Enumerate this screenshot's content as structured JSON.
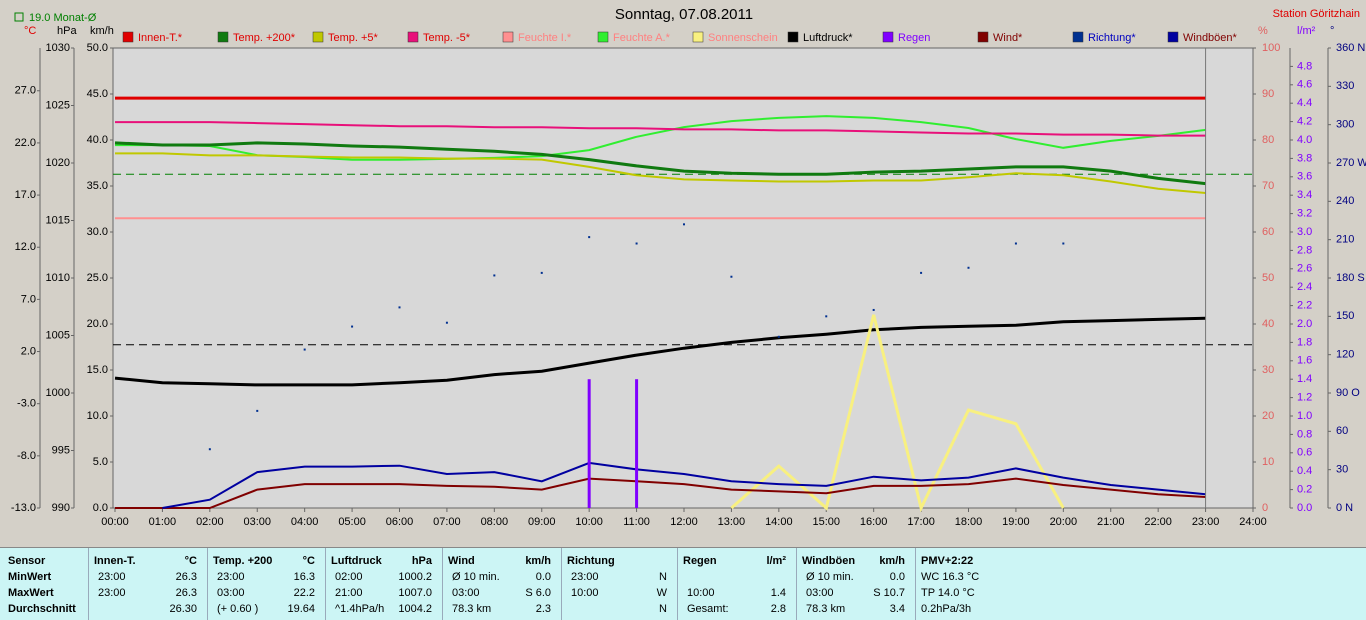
{
  "header": {
    "title": "Sonntag, 07.08.2011",
    "station": "Station Göritzhain",
    "monthly_label": "19.0 Monat-Ø"
  },
  "chart_data": {
    "type": "line",
    "x": [
      0,
      1,
      2,
      3,
      4,
      5,
      6,
      7,
      8,
      9,
      10,
      11,
      12,
      13,
      14,
      15,
      16,
      17,
      18,
      19,
      20,
      21,
      22,
      23
    ],
    "xlim": [
      0,
      24
    ],
    "xticks": [
      {
        "value": 0,
        "label": "00:00"
      },
      {
        "value": 1,
        "label": "01:00"
      },
      {
        "value": 2,
        "label": "02:00"
      },
      {
        "value": 3,
        "label": "03:00"
      },
      {
        "value": 4,
        "label": "04:00"
      },
      {
        "value": 5,
        "label": "05:00"
      },
      {
        "value": 6,
        "label": "06:00"
      },
      {
        "value": 7,
        "label": "07:00"
      },
      {
        "value": 8,
        "label": "08:00"
      },
      {
        "value": 9,
        "label": "09:00"
      },
      {
        "value": 10,
        "label": "10:00"
      },
      {
        "value": 11,
        "label": "11:00"
      },
      {
        "value": 12,
        "label": "12:00"
      },
      {
        "value": 13,
        "label": "13:00"
      },
      {
        "value": 14,
        "label": "14:00"
      },
      {
        "value": 15,
        "label": "15:00"
      },
      {
        "value": 16,
        "label": "16:00"
      },
      {
        "value": 17,
        "label": "17:00"
      },
      {
        "value": 18,
        "label": "18:00"
      },
      {
        "value": 19,
        "label": "19:00"
      },
      {
        "value": 20,
        "label": "20:00"
      },
      {
        "value": 21,
        "label": "21:00"
      },
      {
        "value": 22,
        "label": "22:00"
      },
      {
        "value": 23,
        "label": "23:00"
      },
      {
        "value": 24,
        "label": "24:00"
      }
    ],
    "axes": [
      {
        "title": "°C",
        "color": "#e00000",
        "tick_color": "#000000",
        "ylim": [
          -13,
          31.1
        ],
        "yticks": [
          {
            "value": -13,
            "label": "-13.0"
          },
          {
            "value": -8,
            "label": "-8.0"
          },
          {
            "value": -3,
            "label": "-3.0"
          },
          {
            "value": 2,
            "label": "2.0"
          },
          {
            "value": 7,
            "label": "7.0"
          },
          {
            "value": 12,
            "label": "12.0"
          },
          {
            "value": 17,
            "label": "17.0"
          },
          {
            "value": 22,
            "label": "22.0"
          },
          {
            "value": 27,
            "label": "27.0"
          }
        ]
      },
      {
        "title": "hPa",
        "color": "#000000",
        "tick_color": "#000000",
        "ylim": [
          990,
          1030
        ],
        "yticks": [
          990,
          995,
          1000,
          1005,
          1010,
          1015,
          1020,
          1025,
          1030
        ]
      },
      {
        "title": "km/h",
        "color": "#000000",
        "tick_color": "#000000",
        "ylim": [
          0,
          50
        ],
        "yticks": [
          {
            "value": 0,
            "label": "0.0"
          },
          {
            "value": 5,
            "label": "5.0"
          },
          {
            "value": 10,
            "label": "10.0"
          },
          {
            "value": 15,
            "label": "15.0"
          },
          {
            "value": 20,
            "label": "20.0"
          },
          {
            "value": 25,
            "label": "25.0"
          },
          {
            "value": 30,
            "label": "30.0"
          },
          {
            "value": 35,
            "label": "35.0"
          },
          {
            "value": 40,
            "label": "40.0"
          },
          {
            "value": 45,
            "label": "45.0"
          },
          {
            "value": 50,
            "label": "50.0"
          }
        ]
      },
      {
        "title": "%",
        "color": "#e06060",
        "tick_color": "#e06060",
        "ylim": [
          0,
          100
        ],
        "yticks": [
          0,
          10,
          20,
          30,
          40,
          50,
          60,
          70,
          80,
          90,
          100
        ]
      },
      {
        "title": "l/m²",
        "color": "#8000ff",
        "tick_color": "#8000ff",
        "ylim": [
          0,
          5
        ],
        "yticks": [
          {
            "value": 0,
            "label": "0.0"
          },
          {
            "value": 0.2,
            "label": "0.2"
          },
          {
            "value": 0.4,
            "label": "0.4"
          },
          {
            "value": 0.6,
            "label": "0.6"
          },
          {
            "value": 0.8,
            "label": "0.8"
          },
          {
            "value": 1,
            "label": "1.0"
          },
          {
            "value": 1.2,
            "label": "1.2"
          },
          {
            "value": 1.4,
            "label": "1.4"
          },
          {
            "value": 1.6,
            "label": "1.6"
          },
          {
            "value": 1.8,
            "label": "1.8"
          },
          {
            "value": 2,
            "label": "2.0"
          },
          {
            "value": 2.2,
            "label": "2.2"
          },
          {
            "value": 2.4,
            "label": "2.4"
          },
          {
            "value": 2.6,
            "label": "2.6"
          },
          {
            "value": 2.8,
            "label": "2.8"
          },
          {
            "value": 3,
            "label": "3.0"
          },
          {
            "value": 3.2,
            "label": "3.2"
          },
          {
            "value": 3.4,
            "label": "3.4"
          },
          {
            "value": 3.6,
            "label": "3.6"
          },
          {
            "value": 3.8,
            "label": "3.8"
          },
          {
            "value": 4,
            "label": "4.0"
          },
          {
            "value": 4.2,
            "label": "4.2"
          },
          {
            "value": 4.4,
            "label": "4.4"
          },
          {
            "value": 4.6,
            "label": "4.6"
          },
          {
            "value": 4.8,
            "label": "4.8"
          }
        ]
      },
      {
        "title": "°",
        "color": "#000080",
        "tick_color": "#000080",
        "ylim": [
          0,
          360
        ],
        "yticks": [
          {
            "value": 0,
            "label": "0 N"
          },
          30,
          60,
          {
            "value": 90,
            "label": "90 O"
          },
          120,
          150,
          {
            "value": 180,
            "label": "180 S"
          },
          210,
          240,
          {
            "value": 270,
            "label": "270 W"
          },
          300,
          330,
          {
            "value": 360,
            "label": "360 N"
          }
        ]
      }
    ],
    "reference_lines": [
      {
        "axis": 0,
        "value": 19.0,
        "color": "#008000"
      },
      {
        "axis": 1,
        "value": 1004.2,
        "color": "#000000"
      }
    ],
    "series": [
      {
        "name": "Innen-T.*",
        "color": "#e00000",
        "label_color": "#e00000",
        "axis": 0,
        "style": "line",
        "width": 3,
        "values": [
          26.3,
          26.3,
          26.3,
          26.3,
          26.3,
          26.3,
          26.3,
          26.3,
          26.3,
          26.3,
          26.3,
          26.3,
          26.3,
          26.3,
          26.3,
          26.3,
          26.3,
          26.3,
          26.3,
          26.3,
          26.3,
          26.3,
          26.3,
          26.3
        ]
      },
      {
        "name": "Temp. +200*",
        "color": "#107a10",
        "label_color": "#e00000",
        "axis": 0,
        "style": "line",
        "width": 3,
        "values": [
          22.0,
          21.8,
          21.8,
          22.0,
          21.9,
          21.7,
          21.6,
          21.4,
          21.2,
          20.9,
          20.4,
          19.8,
          19.3,
          19.1,
          19.0,
          19.0,
          19.2,
          19.3,
          19.5,
          19.7,
          19.7,
          19.3,
          18.6,
          18.1
        ]
      },
      {
        "name": "Temp. +5*",
        "color": "#c0c800",
        "label_color": "#e00000",
        "axis": 0,
        "style": "line",
        "width": 2,
        "values": [
          21.0,
          21.0,
          20.8,
          20.8,
          20.7,
          20.6,
          20.6,
          20.5,
          20.5,
          20.4,
          19.7,
          18.9,
          18.5,
          18.4,
          18.3,
          18.3,
          18.4,
          18.4,
          18.7,
          19.1,
          18.9,
          18.3,
          17.6,
          17.2
        ]
      },
      {
        "name": "Temp. -5*",
        "color": "#e8107a",
        "label_color": "#e00000",
        "axis": 0,
        "style": "line",
        "width": 2,
        "values": [
          24.0,
          24.0,
          24.0,
          23.9,
          23.8,
          23.7,
          23.6,
          23.6,
          23.5,
          23.5,
          23.4,
          23.4,
          23.3,
          23.3,
          23.2,
          23.2,
          23.1,
          23.0,
          22.9,
          22.9,
          22.8,
          22.8,
          22.7,
          22.7
        ]
      },
      {
        "name": "Feuchte I.*",
        "color": "#ff9090",
        "label_color": "#ff8080",
        "axis": 3,
        "style": "line",
        "width": 2,
        "values": [
          63,
          63,
          63,
          63,
          63,
          63,
          63,
          63,
          63,
          63,
          63,
          63,
          63,
          63,
          63,
          63,
          63,
          63,
          63,
          63,
          63,
          63,
          63,
          63
        ]
      },
      {
        "name": "Feuchte A.*",
        "color": "#30ee30",
        "label_color": "#ff8080",
        "axis": 3,
        "style": "line",
        "width": 2,
        "values": [
          78.9,
          78.9,
          78.7,
          76.7,
          76.3,
          75.7,
          75.7,
          75.9,
          76.1,
          76.5,
          77.8,
          80.7,
          82.8,
          84.1,
          84.8,
          85.2,
          84.8,
          83.9,
          82.6,
          80.2,
          78.3,
          79.8,
          80.9,
          82.2
        ]
      },
      {
        "name": "Sonnenschein",
        "color": "#f8f080",
        "label_color": "#ff8080",
        "axis": 3,
        "style": "line",
        "width": 3,
        "values": [
          null,
          null,
          null,
          null,
          null,
          null,
          null,
          null,
          null,
          null,
          null,
          null,
          null,
          0,
          9.1,
          0,
          42,
          0,
          21.3,
          18.3,
          0,
          null,
          null,
          null
        ]
      },
      {
        "name": "Luftdruck*",
        "color": "#000000",
        "label_color": "#000000",
        "axis": 1,
        "style": "line",
        "width": 3,
        "values": [
          1001.3,
          1000.9,
          1000.8,
          1000.7,
          1000.7,
          1000.7,
          1000.9,
          1001.1,
          1001.6,
          1001.9,
          1002.6,
          1003.3,
          1003.9,
          1004.4,
          1004.8,
          1005.1,
          1005.5,
          1005.7,
          1005.8,
          1005.9,
          1006.2,
          1006.3,
          1006.4,
          1006.5
        ]
      },
      {
        "name": "Regen",
        "color": "#8000ff",
        "label_color": "#8000ff",
        "axis": 4,
        "style": "bar",
        "width": 3,
        "values": [
          0,
          0,
          0,
          0,
          0,
          0,
          0,
          0,
          0,
          0,
          1.4,
          1.4,
          0,
          0,
          0,
          0,
          0,
          0,
          0,
          0,
          0,
          0,
          0,
          0
        ]
      },
      {
        "name": "Wind*",
        "color": "#800000",
        "label_color": "#800000",
        "axis": 2,
        "style": "line",
        "width": 2,
        "values": [
          0,
          0,
          0,
          2.0,
          2.6,
          2.6,
          2.6,
          2.4,
          2.3,
          2.0,
          3.2,
          2.9,
          2.6,
          2.0,
          1.8,
          1.6,
          2.4,
          2.4,
          2.6,
          3.2,
          2.5,
          2.0,
          1.5,
          1.2
        ]
      },
      {
        "name": "Richtung*",
        "color": "#003090",
        "label_color": "#0000c0",
        "axis": 5,
        "style": "dots",
        "width": 2,
        "values": [
          null,
          null,
          46,
          76,
          124,
          142,
          157,
          145,
          182,
          184,
          212,
          207,
          222,
          181,
          134,
          150,
          155,
          184,
          188,
          207,
          207,
          null,
          null,
          null
        ]
      },
      {
        "name": "Windböen*",
        "color": "#0000a0",
        "label_color": "#800000",
        "axis": 2,
        "style": "line",
        "width": 2,
        "values": [
          null,
          0,
          0.9,
          3.9,
          4.5,
          4.5,
          4.6,
          3.7,
          3.9,
          2.9,
          4.9,
          4.2,
          3.7,
          2.9,
          2.6,
          2.4,
          3.4,
          3.0,
          3.3,
          4.3,
          3.3,
          2.5,
          2.0,
          1.5
        ]
      }
    ]
  },
  "table": {
    "sensor": {
      "title": "Sensor",
      "rows": [
        "MinWert",
        "MaxWert",
        "Durchschnitt"
      ]
    },
    "groups": [
      {
        "title": "Innen-T.",
        "unit": "°C",
        "rows": [
          [
            "23:00",
            "26.3"
          ],
          [
            "23:00",
            "26.3"
          ],
          [
            null,
            "26.30"
          ]
        ]
      },
      {
        "title": "Temp. +200",
        "unit": "°C",
        "rows": [
          [
            "23:00",
            "16.3"
          ],
          [
            "03:00",
            "22.2"
          ],
          [
            "(+ 0.60 )",
            "19.64"
          ]
        ]
      },
      {
        "title": "Luftdruck",
        "unit": "hPa",
        "rows": [
          [
            "02:00",
            "1000.2"
          ],
          [
            "21:00",
            "1007.0"
          ],
          [
            "^1.4hPa/h",
            "1004.2"
          ]
        ]
      },
      {
        "title": "Wind",
        "unit": "km/h",
        "rows": [
          [
            "Ø 10 min.",
            "0.0"
          ],
          [
            "03:00",
            "S 6.0"
          ],
          [
            "78.3 km",
            "2.3"
          ]
        ]
      },
      {
        "title": "Richtung",
        "rows": [
          [
            "23:00",
            "N"
          ],
          [
            "10:00",
            "W"
          ],
          [
            null,
            "N"
          ]
        ]
      },
      {
        "title": "Regen",
        "unit": "l/m²",
        "rows": [
          [
            null,
            null
          ],
          [
            "10:00",
            "1.4"
          ],
          [
            "Gesamt:",
            "2.8"
          ]
        ]
      },
      {
        "title": "Windböen",
        "unit": "km/h",
        "rows": [
          [
            "Ø 10 min.",
            "0.0"
          ],
          [
            "03:00",
            "S 10.7"
          ],
          [
            "78.3 km",
            "3.4"
          ]
        ]
      },
      {
        "title": "PMV+2:22",
        "rows": [
          [
            "WC 16.3 °C"
          ],
          [
            "TP 14.0 °C"
          ],
          [
            "0.2hPa/3h"
          ]
        ]
      }
    ]
  }
}
